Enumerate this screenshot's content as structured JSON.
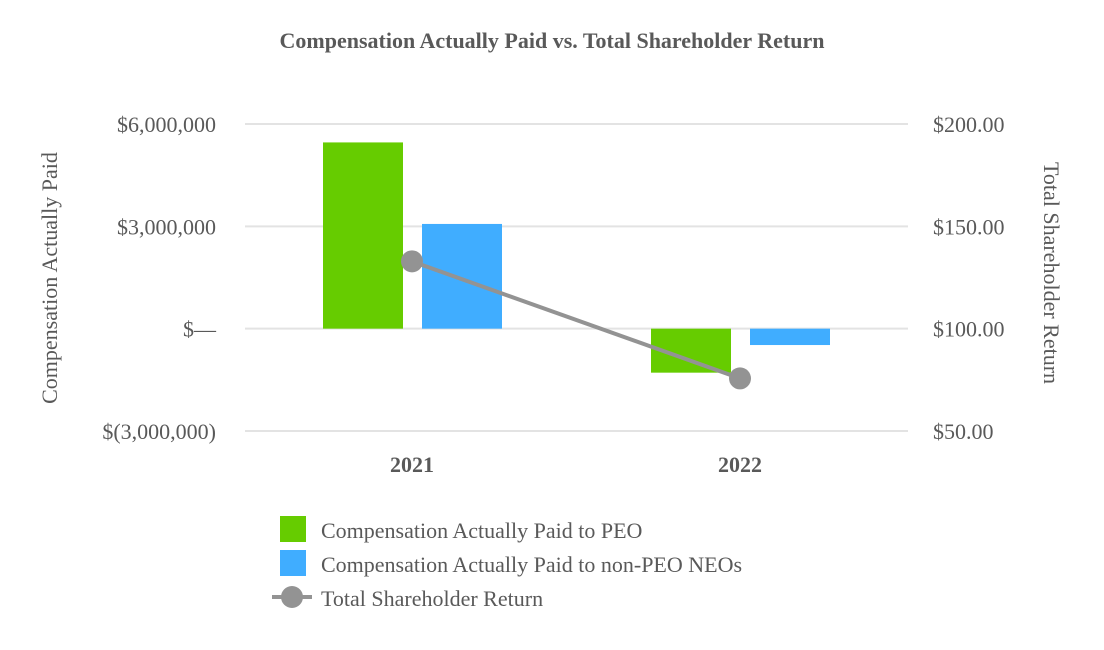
{
  "chart_data": {
    "type": "bar",
    "title": "Compensation Actually Paid vs. Total Shareholder Return",
    "categories": [
      "2021",
      "2022"
    ],
    "y_left": {
      "label": "Compensation Actually Paid",
      "range": [
        -3000000,
        6000000
      ],
      "ticks": [
        6000000,
        3000000,
        0,
        -3000000
      ],
      "tick_labels": [
        "$6,000,000",
        "$3,000,000",
        "$—",
        "$(3,000,000)"
      ]
    },
    "y_right": {
      "label": "Total Shareholder Return",
      "range": [
        50,
        200
      ],
      "ticks": [
        200,
        150,
        100,
        50
      ],
      "tick_labels": [
        "$200.00",
        "$150.00",
        "$100.00",
        "$50.00"
      ]
    },
    "grid": true,
    "legend_position": "bottom",
    "series": [
      {
        "name": "Compensation Actually Paid to PEO",
        "type": "bar",
        "axis": "left",
        "color": "#66CC00",
        "values": [
          5460000,
          -1290000
        ]
      },
      {
        "name": "Compensation Actually Paid to non-PEO NEOs",
        "type": "bar",
        "axis": "left",
        "color": "#40ADFF",
        "values": [
          3070000,
          -480000
        ]
      },
      {
        "name": "Total Shareholder Return",
        "type": "line",
        "axis": "right",
        "color": "#939393",
        "values": [
          132.9,
          75.7
        ]
      }
    ]
  }
}
